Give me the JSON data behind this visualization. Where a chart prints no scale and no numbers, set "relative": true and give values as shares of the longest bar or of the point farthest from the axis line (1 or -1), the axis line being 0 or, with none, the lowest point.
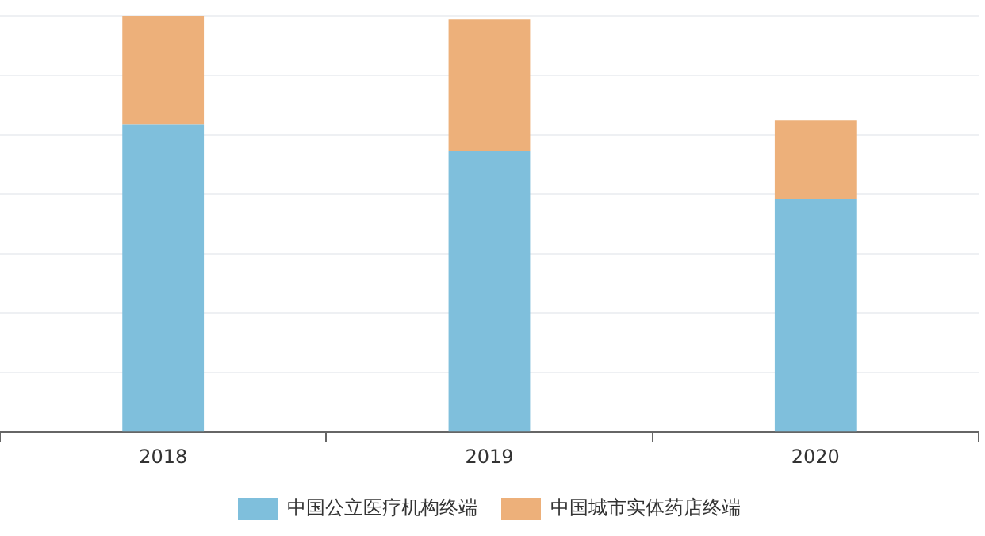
{
  "chart_data": {
    "type": "bar",
    "stacked": true,
    "relative": true,
    "categories": [
      "2018",
      "2019",
      "2020"
    ],
    "series": [
      {
        "name": "中国公立医疗机构终端",
        "color": "#7fbfdc",
        "values": [
          0.738,
          0.675,
          0.56
        ]
      },
      {
        "name": "中国城市实体药店终端",
        "color": "#edb07a",
        "values": [
          0.262,
          0.317,
          0.19
        ]
      }
    ],
    "grid": "y",
    "legend": "bottom"
  }
}
